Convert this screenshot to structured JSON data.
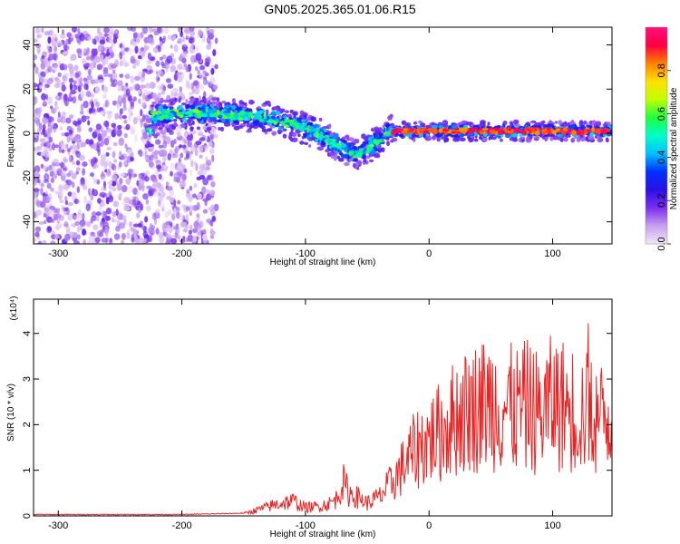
{
  "title": "GN05.2025.365.01.06.R15",
  "colors": {
    "snr_line": "#ee2222",
    "frame": "#000000",
    "background": "#ffffff"
  },
  "chart_data": [
    {
      "type": "heatmap",
      "title": "",
      "xlabel": "Height of straight line (km)",
      "ylabel": "Frequency (Hz)",
      "xlim": [
        -320,
        148
      ],
      "ylim": [
        -50,
        48
      ],
      "xticks": [
        -300,
        -200,
        -100,
        0,
        100
      ],
      "yticks": [
        -40,
        -20,
        0,
        20,
        40
      ],
      "colorbar": {
        "label": "Normalized spectral amplitude",
        "range": [
          0,
          1
        ],
        "ticks": [
          0.0,
          0.2,
          0.4,
          0.6,
          0.8
        ],
        "tick_labels": [
          "0.0",
          "0.2",
          "0.4",
          "0.6",
          "0.8"
        ],
        "colormap": [
          "#f2e6f8",
          "#c8a0ee",
          "#7a2df0",
          "#2a10e6",
          "#0030ff",
          "#00c0ff",
          "#00ffc8",
          "#20ff40",
          "#c0ff00",
          "#ffe000",
          "#ff8000",
          "#ff0040",
          "#ff1080"
        ]
      },
      "ridge": {
        "x": [
          -225,
          -190,
          -170,
          -150,
          -130,
          -110,
          -90,
          -75,
          -65,
          -58,
          -50,
          -45,
          -40,
          -35,
          -30,
          -20,
          0,
          20,
          50,
          80,
          110,
          148
        ],
        "freq": [
          8,
          9,
          9,
          8,
          7,
          4,
          0,
          -5,
          -8,
          -10,
          -7,
          -5,
          -3,
          0,
          1,
          1,
          1,
          1,
          1,
          1,
          1,
          1
        ]
      }
    },
    {
      "type": "line",
      "title": "",
      "xlabel": "Height of straight line (km)",
      "ylabel": "SNR (10 * v/v)",
      "scale_label": "(x10⁴)",
      "xlim": [
        -320,
        148
      ],
      "ylim": [
        0,
        4.75
      ],
      "xticks": [
        -300,
        -200,
        -100,
        0,
        100
      ],
      "yticks": [
        0,
        1,
        2,
        3,
        4
      ],
      "series": [
        {
          "x": [
            -320,
            -200,
            -150,
            -130,
            -120,
            -110,
            -100,
            -90,
            -80,
            -75,
            -70,
            -65,
            -55,
            -50,
            -40,
            -30,
            -20,
            -10,
            0,
            10,
            20,
            30,
            40,
            50,
            60,
            70,
            80,
            90,
            100,
            110,
            120,
            130,
            140,
            148
          ],
          "values": [
            0.02,
            0.02,
            0.05,
            0.22,
            0.3,
            0.35,
            0.2,
            0.22,
            0.3,
            0.4,
            0.8,
            0.55,
            0.4,
            0.3,
            0.45,
            0.8,
            1.2,
            1.6,
            1.8,
            2.0,
            2.3,
            2.5,
            2.6,
            2.7,
            2.6,
            2.5,
            2.6,
            2.4,
            2.7,
            2.6,
            2.5,
            2.4,
            2.3,
            2.4
          ]
        }
      ]
    }
  ]
}
